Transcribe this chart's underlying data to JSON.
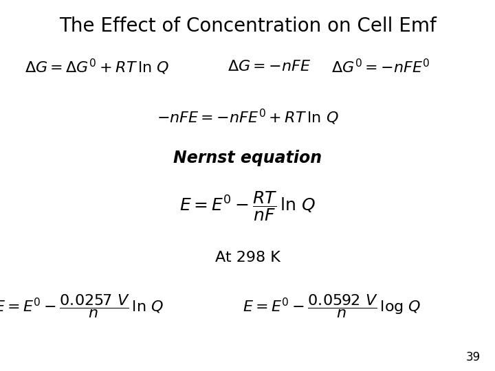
{
  "title": "The Effect of Concentration on Cell Emf",
  "background_color": "#ffffff",
  "text_color": "#000000",
  "page_number": "39",
  "title_fontsize": 20,
  "body_fontsize": 16,
  "small_fontsize": 12
}
